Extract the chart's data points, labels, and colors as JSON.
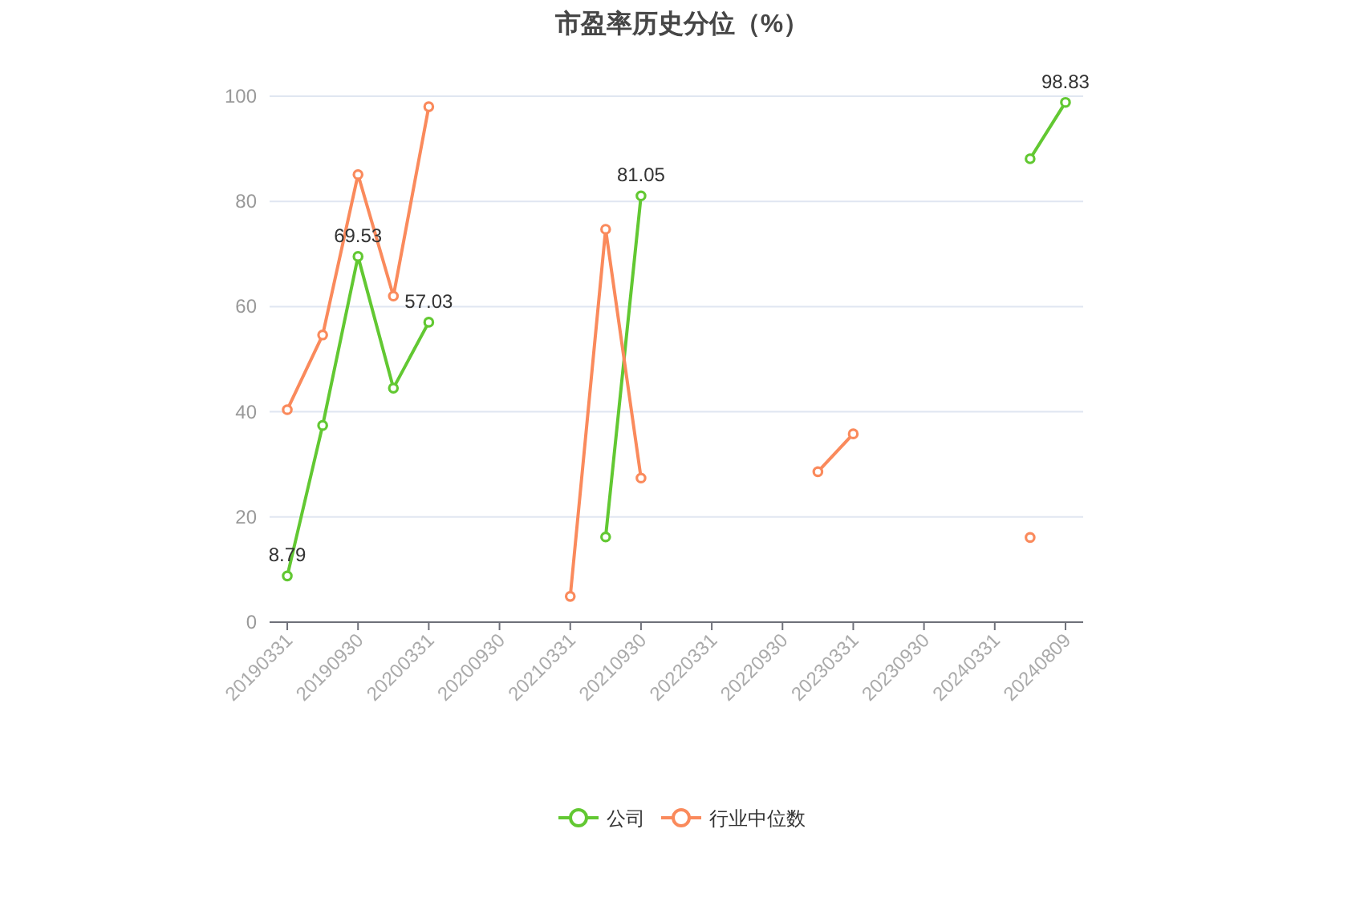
{
  "chart_data": {
    "type": "line",
    "title": "市盈率历史分位（%）",
    "categories": [
      "20190331",
      null,
      "20190930",
      null,
      "20200331",
      null,
      "20200930",
      null,
      "20210331",
      null,
      "20210930",
      null,
      "20220331",
      null,
      "20220930",
      null,
      "20230331",
      null,
      "20230930",
      null,
      "20240331",
      null,
      "20240809"
    ],
    "series": [
      {
        "name": "公司",
        "color": "#62c832",
        "values": [
          8.79,
          37.4,
          69.53,
          44.5,
          57.03,
          null,
          null,
          null,
          null,
          16.2,
          81.05,
          null,
          null,
          null,
          null,
          null,
          null,
          null,
          null,
          null,
          null,
          88.1,
          98.83
        ],
        "value_labels": [
          "8.79",
          null,
          "69.53",
          null,
          "57.03",
          null,
          null,
          null,
          null,
          null,
          "81.05",
          null,
          null,
          null,
          null,
          null,
          null,
          null,
          null,
          null,
          null,
          null,
          "98.83"
        ]
      },
      {
        "name": "行业中位数",
        "color": "#fa8a5c",
        "values": [
          40.4,
          54.6,
          85.1,
          62.0,
          98.0,
          null,
          null,
          null,
          4.9,
          74.7,
          27.4,
          null,
          null,
          null,
          null,
          28.6,
          35.8,
          null,
          null,
          null,
          null,
          16.1,
          null
        ]
      }
    ],
    "ylim": [
      0,
      100
    ],
    "yticks": [
      0,
      20,
      40,
      60,
      80,
      100
    ],
    "grid": "y",
    "legend": "bottom",
    "marker": "circle",
    "line_style": "solid"
  }
}
